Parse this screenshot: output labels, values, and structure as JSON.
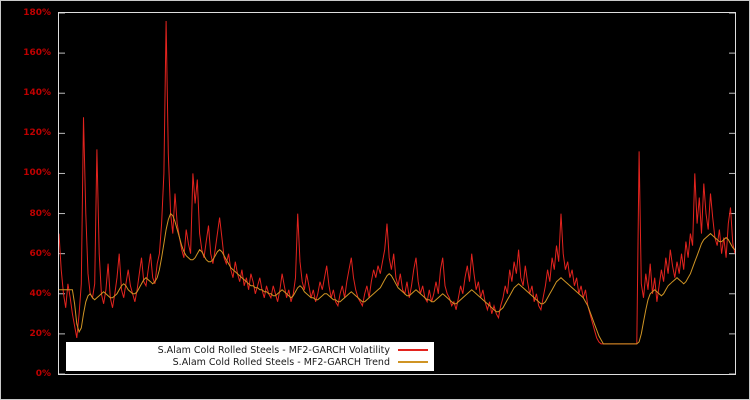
{
  "figure": {
    "background": "#000000",
    "outer_border_color": "#c9c9c9",
    "plot_border_color": "#dedede"
  },
  "chart_data": {
    "type": "line",
    "title": "",
    "xlabel": "",
    "ylabel": "",
    "ylim": [
      0,
      180
    ],
    "yticks": [
      "0%",
      "20%",
      "40%",
      "60%",
      "80%",
      "100%",
      "120%",
      "140%",
      "160%",
      "180%"
    ],
    "ytick_color": "#c00000",
    "x_tick_labels": [],
    "grid": false,
    "legend_position": "bottom-left",
    "legend_background": "#ffffff",
    "series": [
      {
        "name": "S.Alam Cold Rolled Steels - MF2-GARCH Volatility",
        "color": "#e3231e",
        "values": [
          70,
          52,
          40,
          33,
          45,
          38,
          30,
          24,
          18,
          30,
          45,
          128,
          80,
          50,
          40,
          38,
          45,
          112,
          60,
          40,
          35,
          42,
          55,
          38,
          33,
          40,
          48,
          60,
          42,
          38,
          45,
          52,
          44,
          40,
          36,
          42,
          50,
          58,
          46,
          44,
          52,
          60,
          48,
          45,
          55,
          60,
          75,
          100,
          176,
          110,
          80,
          70,
          90,
          75,
          68,
          62,
          58,
          72,
          65,
          60,
          100,
          85,
          97,
          70,
          62,
          58,
          66,
          74,
          60,
          55,
          62,
          70,
          78,
          68,
          58,
          55,
          60,
          52,
          48,
          56,
          50,
          46,
          52,
          44,
          48,
          42,
          50,
          46,
          40,
          44,
          48,
          42,
          38,
          44,
          40,
          38,
          44,
          40,
          36,
          42,
          50,
          44,
          38,
          42,
          36,
          40,
          48,
          80,
          56,
          46,
          42,
          50,
          44,
          38,
          42,
          36,
          40,
          46,
          42,
          48,
          54,
          44,
          38,
          42,
          36,
          34,
          40,
          44,
          38,
          46,
          52,
          58,
          48,
          42,
          38,
          36,
          34,
          40,
          44,
          38,
          46,
          52,
          48,
          54,
          50,
          56,
          62,
          75,
          58,
          52,
          60,
          48,
          44,
          50,
          42,
          40,
          46,
          38,
          44,
          52,
          58,
          46,
          40,
          44,
          38,
          36,
          42,
          36,
          40,
          46,
          40,
          52,
          58,
          44,
          40,
          38,
          34,
          36,
          32,
          38,
          44,
          40,
          48,
          54,
          46,
          60,
          50,
          42,
          46,
          38,
          42,
          36,
          32,
          36,
          30,
          34,
          30,
          28,
          34,
          38,
          44,
          40,
          52,
          46,
          56,
          50,
          62,
          48,
          44,
          54,
          46,
          40,
          44,
          36,
          40,
          34,
          32,
          38,
          44,
          52,
          46,
          58,
          52,
          64,
          56,
          80,
          60,
          52,
          56,
          48,
          52,
          44,
          48,
          40,
          44,
          38,
          42,
          34,
          30,
          26,
          22,
          18,
          16,
          15,
          15,
          15,
          15,
          15,
          15,
          15,
          15,
          15,
          15,
          15,
          15,
          15,
          15,
          15,
          15,
          15,
          111,
          45,
          38,
          50,
          42,
          55,
          40,
          48,
          36,
          44,
          52,
          46,
          58,
          50,
          62,
          54,
          48,
          56,
          50,
          60,
          52,
          66,
          58,
          70,
          64,
          100,
          75,
          88,
          70,
          95,
          80,
          72,
          90,
          78,
          68,
          64,
          72,
          60,
          68,
          58,
          75,
          83,
          65,
          60
        ]
      },
      {
        "name": "S.Alam Cold Rolled Steels - MF2-GARCH Trend",
        "color": "#cf9424",
        "values": [
          42,
          42,
          42,
          42,
          42,
          42,
          42,
          35,
          25,
          21,
          23,
          30,
          36,
          39,
          40,
          38,
          37,
          38,
          39,
          40,
          41,
          40,
          39,
          38,
          38,
          39,
          40,
          42,
          44,
          45,
          44,
          42,
          41,
          40,
          40,
          41,
          43,
          45,
          47,
          48,
          47,
          46,
          45,
          46,
          48,
          52,
          58,
          65,
          72,
          77,
          80,
          79,
          76,
          72,
          68,
          64,
          61,
          59,
          58,
          57,
          57,
          58,
          60,
          62,
          61,
          59,
          57,
          56,
          56,
          57,
          59,
          61,
          62,
          61,
          59,
          57,
          55,
          53,
          52,
          51,
          50,
          49,
          48,
          47,
          46,
          45,
          44,
          44,
          43,
          43,
          42,
          42,
          41,
          41,
          40,
          40,
          39,
          39,
          40,
          41,
          42,
          41,
          40,
          39,
          38,
          39,
          41,
          43,
          44,
          43,
          41,
          40,
          39,
          38,
          38,
          37,
          37,
          38,
          39,
          40,
          40,
          39,
          38,
          37,
          37,
          36,
          36,
          37,
          38,
          39,
          40,
          41,
          40,
          39,
          38,
          37,
          36,
          36,
          37,
          38,
          39,
          40,
          41,
          42,
          43,
          45,
          47,
          49,
          50,
          49,
          47,
          45,
          43,
          42,
          41,
          40,
          39,
          39,
          40,
          41,
          42,
          41,
          40,
          39,
          38,
          37,
          37,
          36,
          36,
          37,
          38,
          39,
          40,
          39,
          38,
          37,
          36,
          35,
          35,
          36,
          37,
          38,
          39,
          40,
          41,
          42,
          41,
          40,
          39,
          38,
          37,
          36,
          35,
          34,
          33,
          32,
          31,
          31,
          32,
          33,
          35,
          37,
          39,
          41,
          43,
          44,
          45,
          44,
          43,
          42,
          41,
          40,
          39,
          38,
          37,
          36,
          35,
          35,
          36,
          38,
          40,
          42,
          44,
          46,
          47,
          48,
          47,
          46,
          45,
          44,
          43,
          42,
          41,
          40,
          39,
          38,
          36,
          34,
          31,
          28,
          25,
          22,
          19,
          17,
          15,
          15,
          15,
          15,
          15,
          15,
          15,
          15,
          15,
          15,
          15,
          15,
          15,
          15,
          15,
          15,
          16,
          20,
          26,
          32,
          37,
          40,
          41,
          42,
          41,
          40,
          39,
          40,
          42,
          44,
          45,
          46,
          47,
          48,
          47,
          46,
          45,
          46,
          48,
          50,
          53,
          56,
          59,
          62,
          65,
          67,
          68,
          69,
          70,
          69,
          68,
          67,
          66,
          66,
          67,
          68,
          67,
          65,
          63,
          62
        ]
      }
    ]
  }
}
